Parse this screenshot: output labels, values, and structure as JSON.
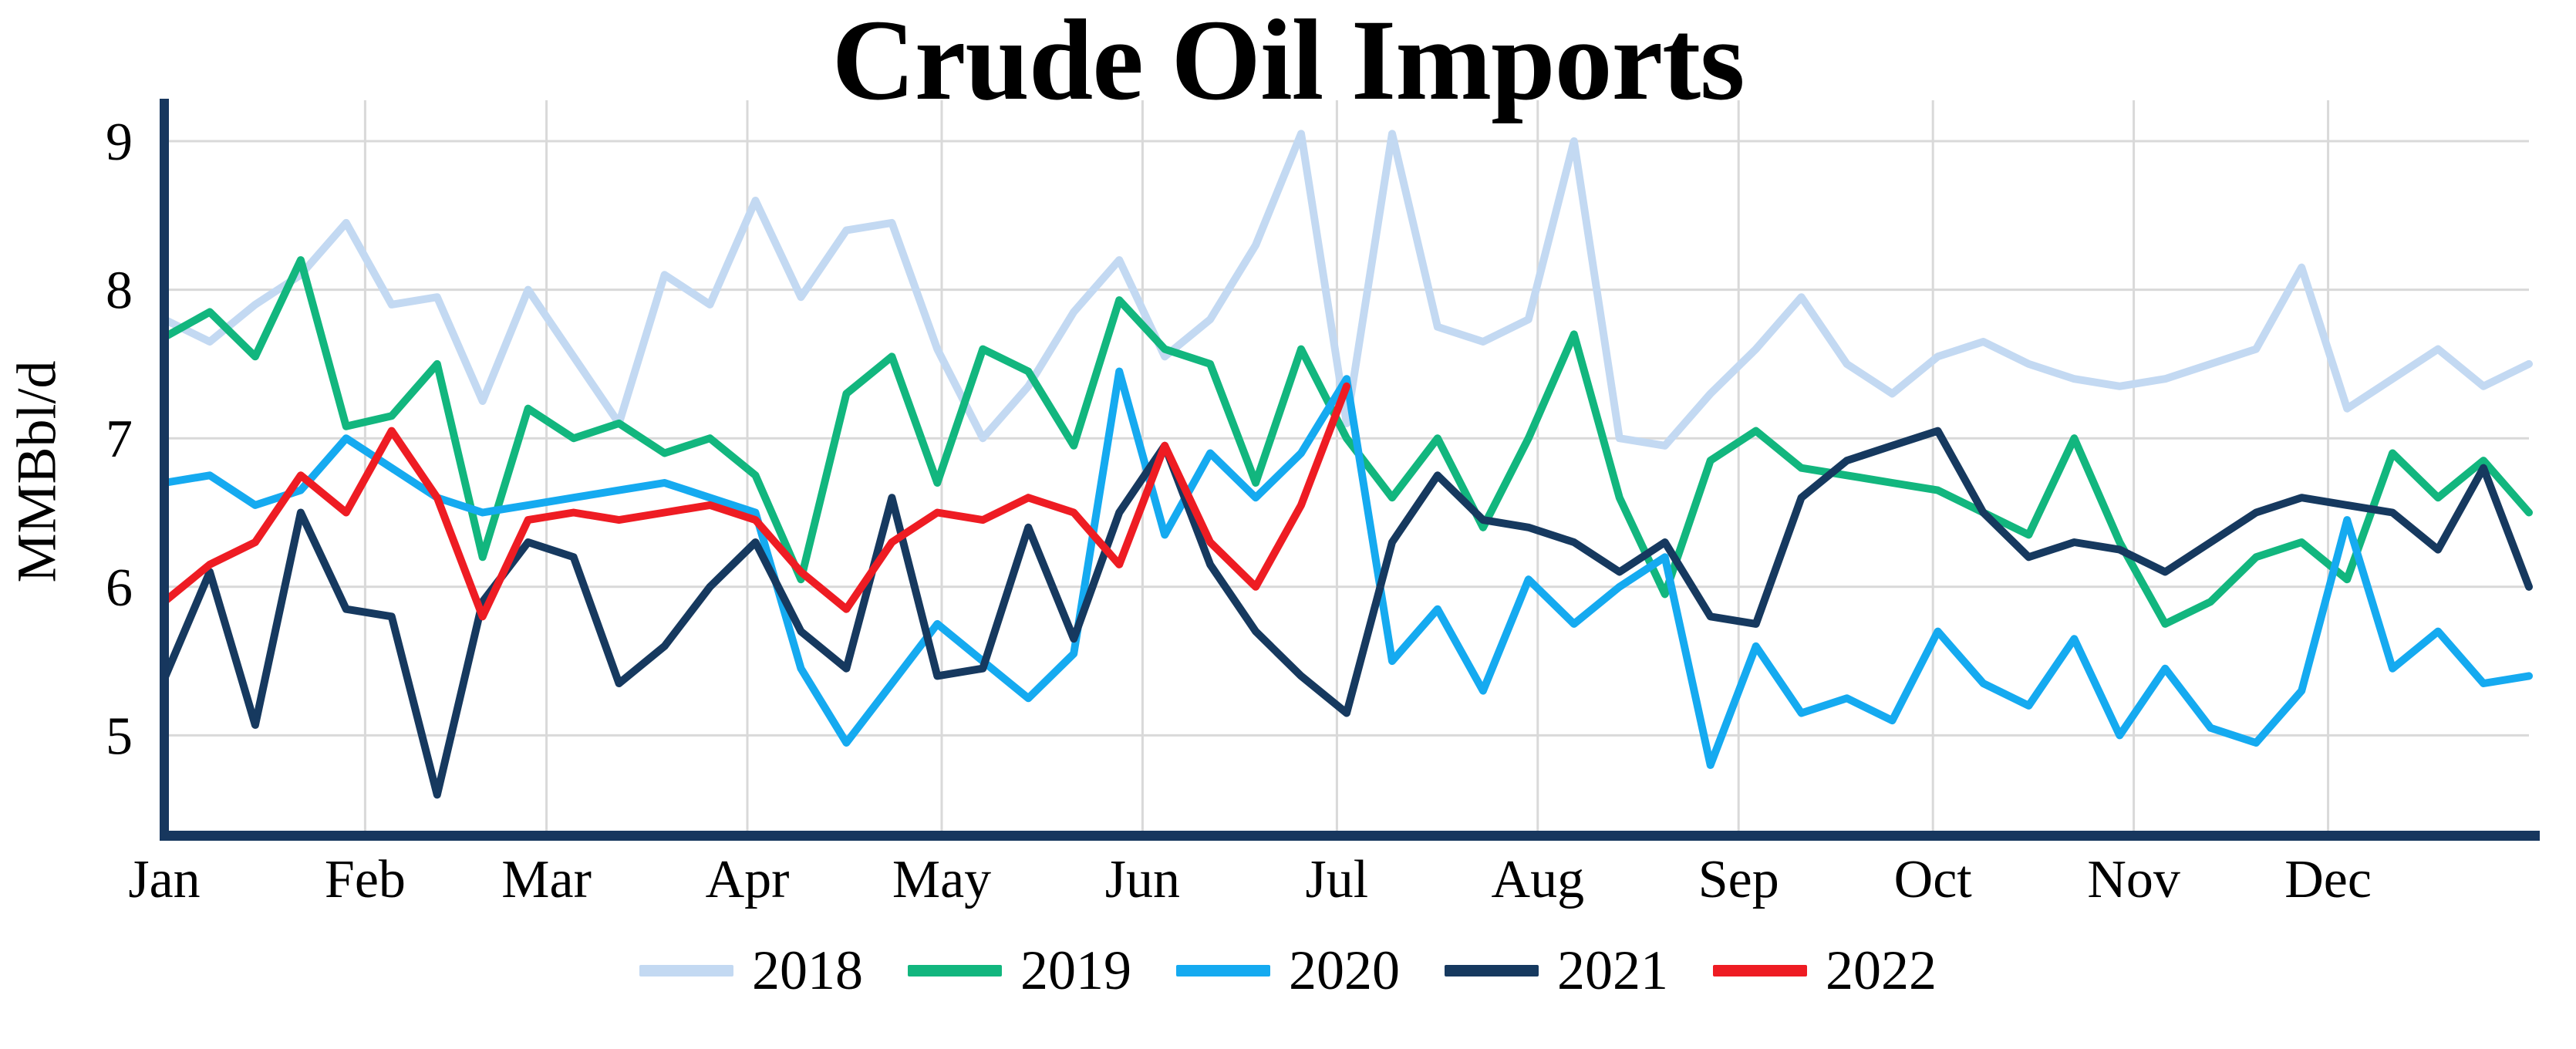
{
  "title": "Crude Oil Imports",
  "y_axis": {
    "label": "MMBbl/d",
    "tick_labels": [
      "9",
      "8",
      "7",
      "6",
      "5"
    ]
  },
  "x_axis": {
    "tick_labels": [
      "Jan",
      "Feb",
      "Mar",
      "Apr",
      "May",
      "Jun",
      "Jul",
      "Aug",
      "Sep",
      "Oct",
      "Nov",
      "Dec"
    ]
  },
  "legend": {
    "items": [
      {
        "label": "2018",
        "color": "#c3d9f2"
      },
      {
        "label": "2019",
        "color": "#12b67e"
      },
      {
        "label": "2020",
        "color": "#15aaf0"
      },
      {
        "label": "2021",
        "color": "#16395f"
      },
      {
        "label": "2022",
        "color": "#ee1c23"
      }
    ]
  },
  "style_colors": {
    "gridline": "#d9d9d9",
    "axis_spine": "#17375e",
    "background": "#ffffff",
    "text": "#000000"
  },
  "chart_data": {
    "type": "line",
    "title": "Crude Oil Imports",
    "ylabel": "MMBbl/d",
    "xlabel": "",
    "x_mode": "weekly points spanning Jan 1 to Dec 31",
    "points_per_full_year": 53,
    "month_tick_labels": [
      "Jan",
      "Feb",
      "Mar",
      "Apr",
      "May",
      "Jun",
      "Jul",
      "Aug",
      "Sep",
      "Oct",
      "Nov",
      "Dec"
    ],
    "month_start_days": [
      0,
      31,
      59,
      90,
      120,
      151,
      181,
      212,
      243,
      273,
      304,
      334
    ],
    "days_in_year": 365,
    "ylim": [
      4.38,
      9.28
    ],
    "yticks": [
      5,
      6,
      7,
      8,
      9
    ],
    "grid": "horizontal gridlines at integer values, vertical gridlines at month starts",
    "legend_position": "bottom-center",
    "series": [
      {
        "name": "2018",
        "color": "#c3d9f2",
        "values": [
          7.8,
          7.65,
          7.9,
          8.1,
          8.45,
          7.9,
          7.95,
          7.25,
          8.0,
          7.55,
          7.1,
          8.1,
          7.9,
          8.6,
          7.95,
          8.4,
          8.45,
          7.6,
          7.0,
          7.35,
          7.85,
          8.2,
          7.55,
          7.8,
          8.3,
          9.05,
          7.1,
          9.05,
          7.75,
          7.65,
          7.8,
          9.0,
          7.0,
          6.95,
          7.3,
          7.6,
          7.95,
          7.5,
          7.3,
          7.55,
          7.65,
          7.5,
          7.4,
          7.35,
          7.4,
          7.5,
          7.6,
          8.15,
          7.2,
          7.4,
          7.6,
          7.35,
          7.5
        ]
      },
      {
        "name": "2019",
        "color": "#12b67e",
        "values": [
          7.68,
          7.85,
          7.55,
          8.2,
          7.08,
          7.15,
          7.5,
          6.2,
          7.2,
          7.0,
          7.1,
          6.9,
          7.0,
          6.75,
          6.05,
          7.3,
          7.55,
          6.7,
          7.6,
          7.45,
          6.95,
          7.93,
          7.6,
          7.5,
          6.7,
          7.6,
          7.0,
          6.6,
          7.0,
          6.4,
          7.0,
          7.7,
          6.6,
          5.95,
          6.85,
          7.05,
          6.8,
          6.75,
          6.7,
          6.65,
          6.5,
          6.35,
          7.0,
          6.3,
          5.75,
          5.9,
          6.2,
          6.3,
          6.05,
          6.9,
          6.6,
          6.85,
          6.5
        ]
      },
      {
        "name": "2020",
        "color": "#15aaf0",
        "values": [
          6.7,
          6.75,
          6.55,
          6.65,
          7.0,
          6.8,
          6.6,
          6.5,
          6.55,
          6.6,
          6.65,
          6.7,
          6.6,
          6.5,
          5.45,
          4.95,
          5.35,
          5.75,
          5.5,
          5.25,
          5.55,
          7.45,
          6.35,
          6.9,
          6.6,
          6.9,
          7.4,
          5.5,
          5.85,
          5.3,
          6.05,
          5.75,
          6.0,
          6.2,
          4.8,
          5.6,
          5.15,
          5.25,
          5.1,
          5.7,
          5.35,
          5.2,
          5.65,
          5.0,
          5.45,
          5.05,
          4.95,
          5.3,
          6.45,
          5.45,
          5.7,
          5.35,
          5.4
        ]
      },
      {
        "name": "2021",
        "color": "#16395f",
        "values": [
          5.38,
          6.1,
          5.07,
          6.5,
          5.85,
          5.8,
          4.6,
          5.9,
          6.3,
          6.2,
          5.35,
          5.6,
          6.0,
          6.3,
          5.7,
          5.45,
          6.6,
          5.4,
          5.45,
          6.4,
          5.65,
          6.5,
          6.95,
          6.15,
          5.7,
          5.4,
          5.15,
          6.3,
          6.75,
          6.45,
          6.4,
          6.3,
          6.1,
          6.3,
          5.8,
          5.75,
          6.6,
          6.85,
          6.95,
          7.05,
          6.5,
          6.2,
          6.3,
          6.25,
          6.1,
          6.3,
          6.5,
          6.6,
          6.55,
          6.5,
          6.25,
          6.8,
          6.0
        ]
      },
      {
        "name": "2022",
        "color": "#ee1c23",
        "values": [
          5.9,
          6.15,
          6.3,
          6.75,
          6.5,
          7.05,
          6.6,
          5.8,
          6.45,
          6.5,
          6.45,
          6.5,
          6.55,
          6.45,
          6.1,
          5.85,
          6.3,
          6.5,
          6.45,
          6.6,
          6.5,
          6.15,
          6.95,
          6.3,
          6.0,
          6.55,
          7.35
        ]
      }
    ]
  }
}
